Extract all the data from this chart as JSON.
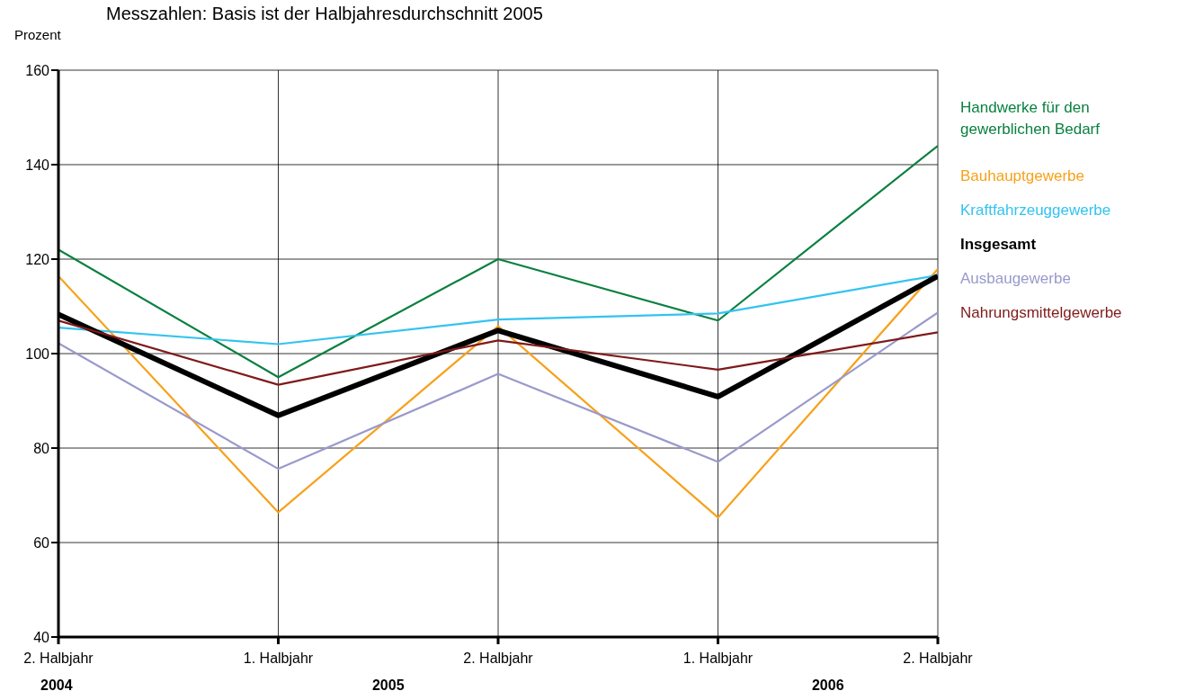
{
  "chart_data": {
    "type": "line",
    "title": "Messzahlen: Basis ist der Halbjahresdurchschnitt 2005",
    "ylabel": "Prozent",
    "categories": [
      "2. Halbjahr",
      "1. Halbjahr",
      "2. Halbjahr",
      "1. Halbjahr",
      "2. Halbjahr"
    ],
    "annotations": [
      "2004",
      "2005",
      "2006"
    ],
    "ylim": [
      40,
      160
    ],
    "yticks": [
      40,
      60,
      80,
      100,
      120,
      140,
      160
    ],
    "grid": true,
    "legend": "right",
    "marker": "none",
    "series": [
      {
        "name": "Handwerke für den gewerblichen Bedarf",
        "color": "#0a8040",
        "values": [
          122,
          95,
          120,
          107,
          144
        ]
      },
      {
        "name": "Bauhauptgewerbe",
        "color": "#f7a11a",
        "values": [
          116.4,
          66.4,
          105.8,
          65.3,
          117.9
        ]
      },
      {
        "name": "Kraftfahrzeuggewerbe",
        "color": "#33c3f0",
        "values": [
          105.5,
          102,
          107.2,
          108.5,
          116.6
        ]
      },
      {
        "name": "Insgesamt",
        "color": "#000000",
        "values": [
          108.3,
          86.9,
          104.9,
          90.9,
          116.4
        ]
      },
      {
        "name": "Ausbaugewerbe",
        "color": "#9999cc",
        "values": [
          102.2,
          75.6,
          95.7,
          77.1,
          108.7
        ]
      },
      {
        "name": "Nahrungsmittelgewerbe",
        "color": "#7f1a1a",
        "values": [
          107,
          93.4,
          102.8,
          96.6,
          104.5
        ]
      }
    ]
  }
}
